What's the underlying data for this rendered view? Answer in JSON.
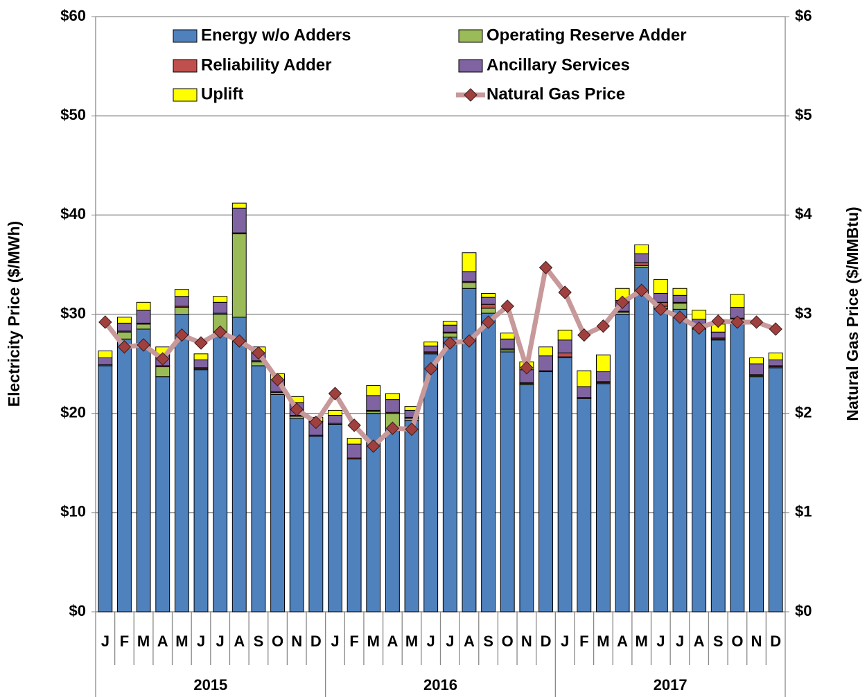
{
  "chart_data": {
    "type": "bar",
    "stacked": true,
    "y_axis_label": "Electricity Price ($/MWh)",
    "y2_axis_label": "Natural Gas Price ($/MMBtu)",
    "categories": [
      "J",
      "F",
      "M",
      "A",
      "M",
      "J",
      "J",
      "A",
      "S",
      "O",
      "N",
      "D",
      "J",
      "F",
      "M",
      "A",
      "M",
      "J",
      "J",
      "A",
      "S",
      "O",
      "N",
      "D",
      "J",
      "F",
      "M",
      "A",
      "M",
      "J",
      "J",
      "A",
      "S",
      "O",
      "N",
      "D"
    ],
    "years": [
      "2015",
      "2016",
      "2017"
    ],
    "legend": "upper center",
    "grid": true,
    "ylim": [
      0,
      60
    ],
    "yticks": [
      {
        "value": 0,
        "label": "$0"
      },
      {
        "value": 10,
        "label": "$10"
      },
      {
        "value": 20,
        "label": "$20"
      },
      {
        "value": 30,
        "label": "$30"
      },
      {
        "value": 40,
        "label": "$40"
      },
      {
        "value": 50,
        "label": "$50"
      },
      {
        "value": 60,
        "label": "$60"
      }
    ],
    "y2lim": [
      0,
      6
    ],
    "y2ticks": [
      {
        "value": 0,
        "label": "$0"
      },
      {
        "value": 1,
        "label": "$1"
      },
      {
        "value": 2,
        "label": "$2"
      },
      {
        "value": 3,
        "label": "$3"
      },
      {
        "value": 4,
        "label": "$4"
      },
      {
        "value": 5,
        "label": "$5"
      },
      {
        "value": 6,
        "label": "$6"
      }
    ],
    "series": [
      {
        "name": "Energy w/o Adders",
        "color": "#4f81bd",
        "values": [
          24.8,
          27.5,
          28.5,
          23.7,
          30.0,
          24.4,
          28.0,
          29.7,
          24.8,
          21.9,
          19.5,
          17.7,
          18.9,
          15.4,
          20.0,
          18.5,
          19.3,
          26.0,
          27.7,
          32.6,
          30.1,
          26.2,
          22.9,
          24.2,
          25.6,
          21.5,
          23.0,
          30.0,
          34.7,
          30.6,
          30.5,
          28.5,
          27.4,
          29.2,
          23.7,
          24.6
        ]
      },
      {
        "name": "Operating Reserve Adder",
        "color": "#9bbb59",
        "values": [
          0,
          0.7,
          0.5,
          1.0,
          0.7,
          0.1,
          2.0,
          8.4,
          0.4,
          0.2,
          0.2,
          0,
          0,
          0,
          0.2,
          1.5,
          0.2,
          0.1,
          0.4,
          0.6,
          0.5,
          0.2,
          0.1,
          0,
          0.1,
          0,
          0.1,
          0.2,
          0.2,
          0.2,
          0.6,
          0.3,
          0.1,
          0.3,
          0.1,
          0.1
        ]
      },
      {
        "name": "Reliability Adder",
        "color": "#c0504d",
        "values": [
          0.1,
          0.1,
          0.1,
          0.1,
          0.1,
          0.1,
          0.1,
          0.1,
          0.1,
          0.1,
          0.1,
          0.1,
          0.1,
          0.1,
          0.1,
          0.1,
          0.1,
          0.1,
          0.1,
          0.1,
          0.4,
          0.1,
          0.1,
          0.1,
          0.4,
          0.1,
          0.1,
          0.1,
          0.3,
          0.4,
          0.1,
          0.1,
          0.1,
          0.1,
          0.1,
          0.1
        ]
      },
      {
        "name": "Ancillary Services",
        "color": "#8064a2",
        "values": [
          0.7,
          0.8,
          1.3,
          1.0,
          1.0,
          0.8,
          1.1,
          2.5,
          0.8,
          1.2,
          1.3,
          1.4,
          0.8,
          1.4,
          1.5,
          1.3,
          0.7,
          0.6,
          0.7,
          1.0,
          0.7,
          1.0,
          1.3,
          1.5,
          1.3,
          1.1,
          1.0,
          1.1,
          0.9,
          0.9,
          0.7,
          0.6,
          0.6,
          1.1,
          1.1,
          0.6
        ]
      },
      {
        "name": "Uplift",
        "color": "#ffff00",
        "values": [
          0.7,
          0.6,
          0.8,
          0.9,
          0.7,
          0.6,
          0.6,
          0.5,
          0.6,
          0.6,
          0.6,
          0.4,
          0.5,
          0.6,
          1.0,
          0.6,
          0.4,
          0.4,
          0.4,
          1.9,
          0.4,
          0.6,
          0.8,
          0.9,
          1.0,
          1.6,
          1.7,
          1.2,
          0.9,
          1.4,
          0.7,
          0.9,
          0.8,
          1.3,
          0.6,
          0.7
        ]
      },
      {
        "name": "Natural Gas Price",
        "type": "line",
        "axis": "y2",
        "color": "#c8999a",
        "marker_color": "#a0403e",
        "values": [
          2.92,
          2.67,
          2.69,
          2.55,
          2.79,
          2.71,
          2.82,
          2.73,
          2.61,
          2.34,
          2.04,
          1.91,
          2.2,
          1.88,
          1.67,
          1.85,
          1.84,
          2.45,
          2.71,
          2.73,
          2.92,
          3.08,
          2.46,
          3.47,
          3.22,
          2.79,
          2.88,
          3.12,
          3.24,
          3.05,
          2.97,
          2.86,
          2.93,
          2.92,
          2.92,
          2.85
        ]
      }
    ]
  }
}
